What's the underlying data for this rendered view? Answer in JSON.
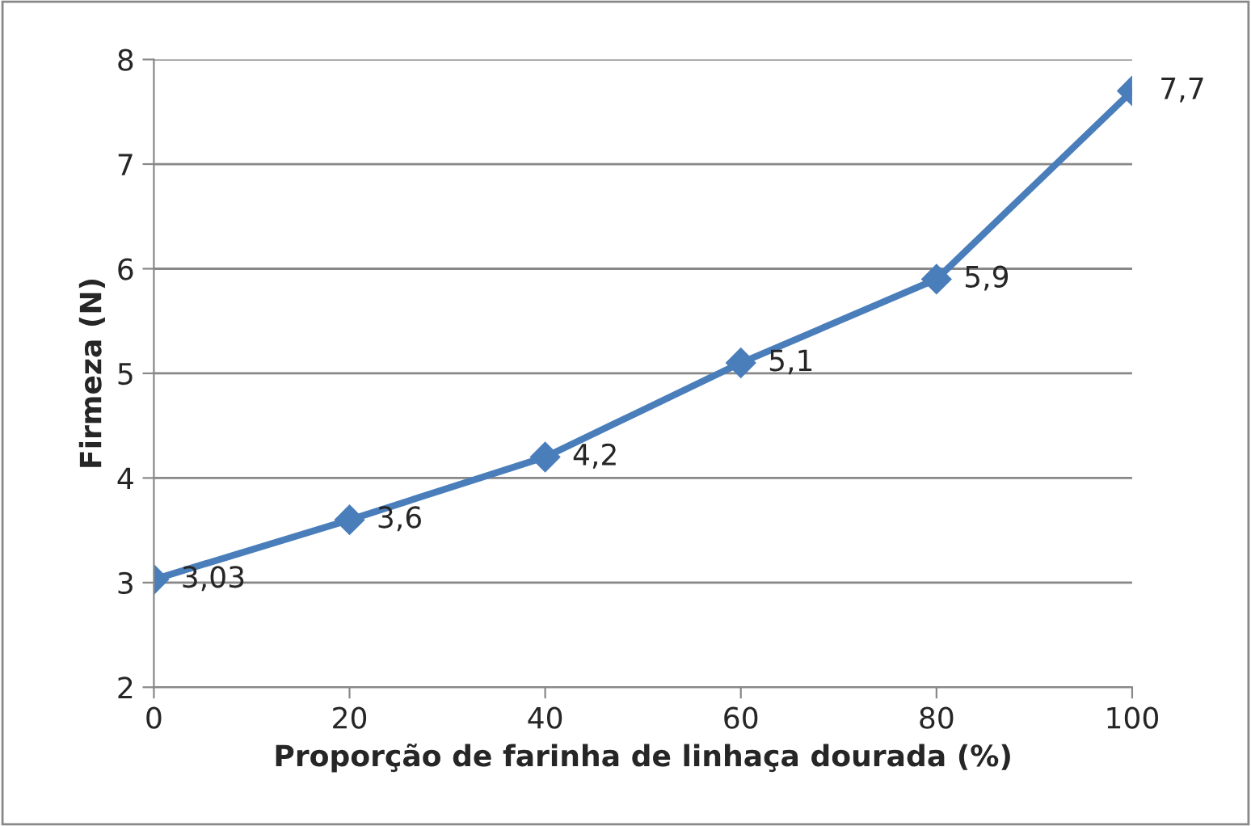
{
  "chart_data": {
    "type": "line",
    "xlabel": "Proporção de farinha de linhaça dourada (%)",
    "ylabel": "Firmeza (N)",
    "x": [
      0,
      20,
      40,
      60,
      80,
      100
    ],
    "series": [
      {
        "color": "#4a7ebb",
        "values": [
          3.03,
          3.6,
          4.2,
          5.1,
          5.9,
          7.7
        ],
        "value_labels": [
          "3,03",
          "3,6",
          "4,2",
          "5,1",
          "5,9",
          "7,7"
        ]
      }
    ],
    "xlim": [
      0,
      100
    ],
    "xticks": [
      0,
      20,
      40,
      60,
      80,
      100
    ],
    "ylim": [
      2,
      8
    ],
    "yticks": [
      2,
      3,
      4,
      5,
      6,
      7,
      8
    ],
    "grid": "y",
    "marker": "diamond",
    "line_style": "solid"
  }
}
